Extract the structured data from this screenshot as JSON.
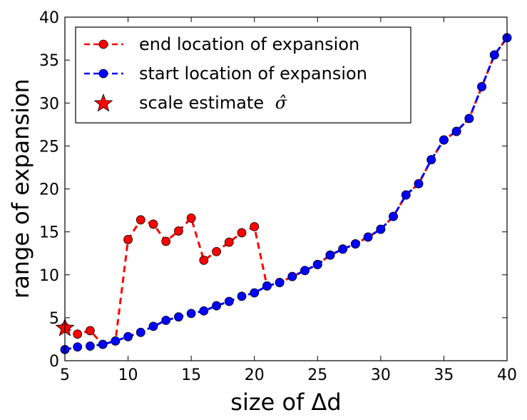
{
  "chart_data": {
    "type": "line",
    "title": "",
    "xlabel": "size of Δd",
    "ylabel": "range of expansion",
    "xlim": [
      5,
      40
    ],
    "ylim": [
      0,
      40
    ],
    "xticks": [
      5,
      10,
      15,
      20,
      25,
      30,
      35,
      40
    ],
    "yticks": [
      0,
      5,
      10,
      15,
      20,
      25,
      30,
      35,
      40
    ],
    "legend_position": "top-left",
    "series": [
      {
        "name": "end location of expansion",
        "color": "#ff0000",
        "linestyle": "dashed",
        "marker": "circle",
        "x": [
          5,
          6,
          7,
          8,
          9,
          10,
          11,
          12,
          13,
          14,
          15,
          16,
          17,
          18,
          19,
          20,
          21,
          22,
          23,
          24,
          25,
          26,
          27,
          28,
          29,
          30,
          31,
          32,
          33,
          34,
          35,
          36,
          37,
          38,
          39,
          40
        ],
        "y": [
          3.9,
          3.1,
          3.5,
          1.9,
          2.3,
          14.1,
          16.4,
          15.9,
          13.9,
          15.1,
          16.6,
          11.7,
          12.7,
          13.8,
          14.9,
          15.6,
          8.7,
          9.1,
          9.8,
          10.5,
          11.2,
          12.3,
          13.0,
          13.6,
          14.4,
          15.3,
          16.8,
          19.3,
          20.6,
          23.4,
          25.7,
          26.7,
          28.2,
          31.9,
          35.6,
          37.6
        ]
      },
      {
        "name": "start location of expansion",
        "color": "#0000ff",
        "linestyle": "dashed",
        "marker": "circle",
        "x": [
          5,
          6,
          7,
          8,
          9,
          10,
          11,
          12,
          13,
          14,
          15,
          16,
          17,
          18,
          19,
          20,
          21,
          22,
          23,
          24,
          25,
          26,
          27,
          28,
          29,
          30,
          31,
          32,
          33,
          34,
          35,
          36,
          37,
          38,
          39,
          40
        ],
        "y": [
          1.3,
          1.6,
          1.7,
          1.9,
          2.3,
          2.8,
          3.3,
          4.0,
          4.7,
          5.1,
          5.5,
          5.8,
          6.4,
          6.9,
          7.5,
          7.9,
          8.7,
          9.1,
          9.8,
          10.5,
          11.2,
          12.3,
          13.0,
          13.6,
          14.4,
          15.3,
          16.8,
          19.3,
          20.6,
          23.4,
          25.7,
          26.7,
          28.2,
          31.9,
          35.6,
          37.6
        ]
      }
    ],
    "annotations": [
      {
        "name": "scale estimate σ̂",
        "marker": "star",
        "color": "#ff0000",
        "x": 5,
        "y": 3.8
      }
    ]
  },
  "legend": {
    "entries": [
      {
        "text": "end location of expansion",
        "color": "#ff0000",
        "marker": "circle"
      },
      {
        "text": "start location of expansion",
        "color": "#0000ff",
        "marker": "circle"
      },
      {
        "text": "scale estimate",
        "math": "σ̂",
        "color": "#ff0000",
        "marker": "star"
      }
    ]
  }
}
